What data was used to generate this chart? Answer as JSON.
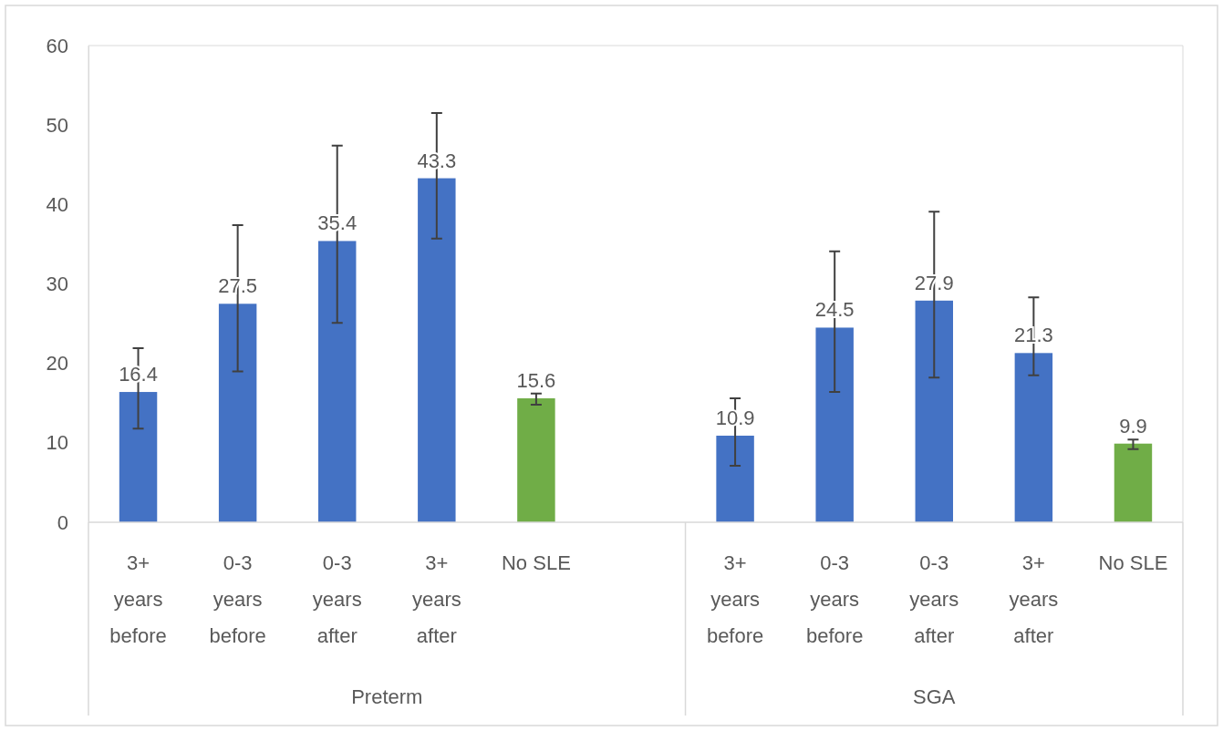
{
  "chart_data": {
    "type": "bar",
    "categories": [
      "3+ years before",
      "0-3 years before",
      "0-3 years after",
      "3+ years after",
      "No SLE",
      null,
      "3+ years before",
      "0-3 years before",
      "0-3 years after",
      "3+ years after",
      "No SLE"
    ],
    "values": [
      16.4,
      27.5,
      35.4,
      43.3,
      15.6,
      null,
      10.9,
      24.5,
      27.9,
      21.3,
      9.9
    ],
    "colors": [
      "#4472c4",
      "#4472c4",
      "#4472c4",
      "#4472c4",
      "#70ad47",
      null,
      "#4472c4",
      "#4472c4",
      "#4472c4",
      "#4472c4",
      "#70ad47"
    ],
    "errors": [
      [
        11.8,
        21.9
      ],
      [
        19.0,
        37.4
      ],
      [
        25.1,
        47.4
      ],
      [
        35.7,
        51.5
      ],
      [
        14.8,
        16.2
      ],
      null,
      [
        7.1,
        15.6
      ],
      [
        16.4,
        34.1
      ],
      [
        18.2,
        39.1
      ],
      [
        18.5,
        28.3
      ],
      [
        9.2,
        10.4
      ]
    ],
    "ylim": [
      0,
      60
    ],
    "yticks": [
      0,
      10,
      20,
      30,
      40,
      50,
      60
    ],
    "data_labels": true,
    "grid": false,
    "annotations": [
      "Preterm",
      "SGA"
    ]
  }
}
